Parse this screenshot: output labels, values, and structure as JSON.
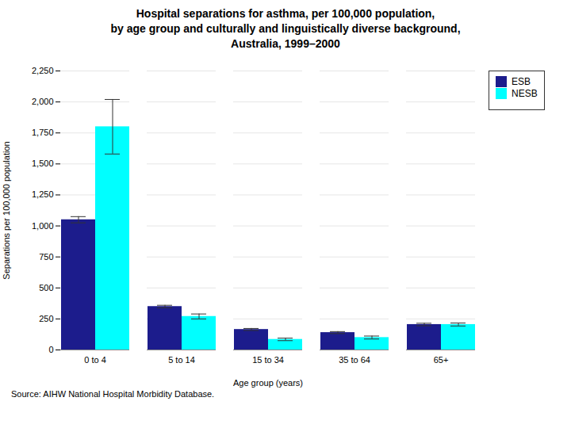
{
  "chart_data": {
    "type": "bar",
    "title": "Hospital separations for asthma, per 100,000 population,\nby age group and culturally and linguistically diverse background,\nAustralia, 1999–2000",
    "categories": [
      "0 to 4",
      "5 to 14",
      "15 to 34",
      "35 to 64",
      "65+"
    ],
    "series": [
      {
        "name": "ESB",
        "color": "#1C1C8C",
        "values": [
          1050,
          350,
          165,
          140,
          205
        ],
        "errors": [
          25,
          10,
          8,
          8,
          10
        ]
      },
      {
        "name": "NESB",
        "color": "#00FFFF",
        "values": [
          1800,
          270,
          85,
          100,
          205
        ],
        "errors": [
          220,
          20,
          10,
          12,
          12
        ]
      }
    ],
    "xlabel": "Age group (years)",
    "ylabel": "Separations per 100,000 population",
    "ylim": [
      0,
      2250
    ],
    "yticks": [
      0,
      250,
      500,
      750,
      {
        "value": 1000,
        "label": "1,000"
      },
      {
        "value": 1250,
        "label": "1,250"
      },
      {
        "value": 1500,
        "label": "1,500"
      },
      {
        "value": 1750,
        "label": "1,750"
      },
      {
        "value": 2000,
        "label": "2,000"
      },
      {
        "value": 2250,
        "label": "2,250"
      }
    ],
    "grid": true,
    "legend": "right",
    "source": "Source: AIHW National Hospital Morbidity Database."
  }
}
